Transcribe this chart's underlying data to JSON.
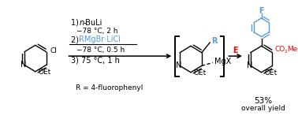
{
  "bg_color": "#ffffff",
  "black": "#000000",
  "blue": "#5B9BD5",
  "red": "#FF0000",
  "figsize": [
    3.78,
    1.56
  ],
  "dpi": 100,
  "step1_line1a": "1) ",
  "step1_italic": "n",
  "step1_line1b": "-BuLi",
  "step1_line2": "−78 °C, 2 h",
  "step2_prefix": "2) ",
  "step2_colored": "RMgBr·LiCl",
  "step2_line2": "−78 °C, 0.5 h",
  "step3_line1": "3) 75 °C, 1 h",
  "r_def": "R = 4-fluorophenyl",
  "e_label": "E",
  "yield_line1": "53%",
  "yield_line2": "overall yield",
  "mol1_N": "N",
  "mol1_Cl": "Cl",
  "mol1_OEt": "OEt",
  "mol2_R": "R",
  "mol2_MgX": "MgX",
  "mol2_N": "N",
  "mol2_OEt": "OEt",
  "mol3_F": "F",
  "mol3_CO2Me_a": "CO",
  "mol3_CO2Me_b": "2",
  "mol3_CO2Me_c": "Me",
  "mol3_N": "N",
  "mol3_OEt": "OEt"
}
